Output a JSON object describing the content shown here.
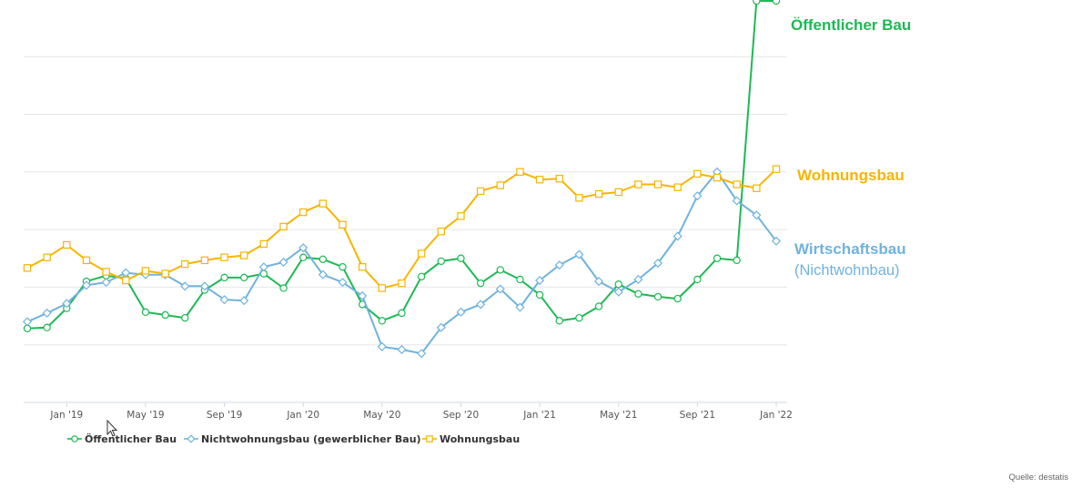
{
  "chart_data": {
    "type": "line",
    "title": "",
    "xlabel": "",
    "ylabel": "",
    "grid": true,
    "legend_position": "bottom-left",
    "x": [
      "2018-11",
      "2018-12",
      "2019-01",
      "2019-02",
      "2019-03",
      "2019-04",
      "2019-05",
      "2019-06",
      "2019-07",
      "2019-08",
      "2019-09",
      "2019-10",
      "2019-11",
      "2019-12",
      "2020-01",
      "2020-02",
      "2020-03",
      "2020-04",
      "2020-05",
      "2020-06",
      "2020-07",
      "2020-08",
      "2020-09",
      "2020-10",
      "2020-11",
      "2020-12",
      "2021-01",
      "2021-02",
      "2021-03",
      "2021-04",
      "2021-05",
      "2021-06",
      "2021-07",
      "2021-08",
      "2021-09",
      "2021-10",
      "2021-11",
      "2021-12",
      "2022-01"
    ],
    "tick_labels": [
      {
        "x": "2019-01",
        "label": "Jan '19"
      },
      {
        "x": "2019-05",
        "label": "May '19"
      },
      {
        "x": "2019-09",
        "label": "Sep '19"
      },
      {
        "x": "2020-01",
        "label": "Jan '20"
      },
      {
        "x": "2020-05",
        "label": "May '20"
      },
      {
        "x": "2020-09",
        "label": "Sep '20"
      },
      {
        "x": "2021-01",
        "label": "Jan '21"
      },
      {
        "x": "2021-05",
        "label": "May '21"
      },
      {
        "x": "2021-09",
        "label": "Sep '21"
      },
      {
        "x": "2022-01",
        "label": "Jan '22"
      }
    ],
    "y_gridlines": [
      60,
      120,
      180,
      240,
      300,
      360
    ],
    "ylim": [
      0,
      400
    ],
    "series": [
      {
        "name": "Öffentlicher Bau",
        "end_label": "Öffentlicher Bau",
        "color": "#1db954",
        "marker": "circle",
        "values": [
          77,
          78,
          98,
          126,
          132,
          129,
          94,
          91,
          88,
          117,
          130,
          130,
          134,
          119,
          151,
          149,
          141,
          102,
          85,
          93,
          131,
          147,
          150,
          124,
          138,
          128,
          112,
          85,
          88,
          100,
          123,
          113,
          110,
          108,
          128,
          150,
          148,
          418,
          418
        ]
      },
      {
        "name": "Nichtwohnungsbau (gewerblicher Bau)",
        "end_label": "Wirtschaftsbau",
        "end_sublabel": "(Nichtwohnbau)",
        "color": "#6fb3de",
        "marker": "diamond",
        "values": [
          84,
          93,
          103,
          122,
          125,
          135,
          133,
          133,
          121,
          121,
          107,
          106,
          141,
          146,
          161,
          133,
          125,
          111,
          58,
          55,
          51,
          78,
          94,
          102,
          118,
          99,
          127,
          143,
          154,
          126,
          115,
          128,
          145,
          173,
          215,
          240,
          210,
          195,
          168
        ]
      },
      {
        "name": "Wohnungsbau",
        "end_label": "Wohnungsbau",
        "color": "#f7b500",
        "marker": "square",
        "values": [
          140,
          151,
          164,
          148,
          136,
          127,
          137,
          134,
          144,
          148,
          151,
          153,
          165,
          183,
          198,
          207,
          185,
          141,
          119,
          124,
          155,
          178,
          194,
          220,
          226,
          240,
          232,
          233,
          213,
          217,
          219,
          227,
          227,
          224,
          238,
          234,
          227,
          223,
          243
        ]
      }
    ]
  },
  "source": "Quelle: destatis"
}
